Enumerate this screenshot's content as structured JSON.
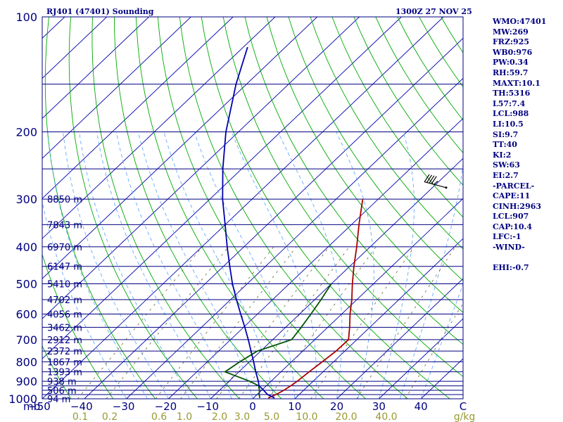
{
  "chart_data": {
    "type": "line",
    "subtype": "skew-t log-p sounding",
    "title_left": "RJ401 (47401) Sounding",
    "title_right": "1300Z 27 NOV 25",
    "x_axis": {
      "unit_label": "C",
      "corner_label": "mb",
      "range": [
        -50,
        50
      ],
      "ticks": [
        -50,
        -40,
        -30,
        -20,
        -10,
        0,
        10,
        20,
        30,
        40
      ]
    },
    "y_axis": {
      "scale": "log",
      "range": [
        1000,
        100
      ],
      "ticks": [
        100,
        200,
        300,
        400,
        500,
        600,
        700,
        800,
        900,
        1000
      ],
      "isobars": [
        100,
        150,
        200,
        250,
        300,
        350,
        400,
        450,
        500,
        550,
        600,
        650,
        700,
        750,
        800,
        850,
        900,
        925,
        950,
        975,
        1000
      ]
    },
    "mixing_ratio_axis": {
      "unit_label": "g/kg",
      "ticks": [
        "0.1",
        "0.2",
        "0.6",
        "1.0",
        "2.0",
        "3.0",
        "5.0",
        "10.0",
        "20.0",
        "40.0"
      ],
      "values": [
        0.1,
        0.2,
        0.6,
        1.0,
        2.0,
        3.0,
        5.0,
        10.0,
        20.0,
        40.0
      ]
    },
    "height_labels": [
      {
        "p": 300,
        "label": "8850 m"
      },
      {
        "p": 350,
        "label": "7843 m"
      },
      {
        "p": 400,
        "label": "6970 m"
      },
      {
        "p": 450,
        "label": "6147 m"
      },
      {
        "p": 500,
        "label": "5410 m"
      },
      {
        "p": 550,
        "label": "4702 m"
      },
      {
        "p": 600,
        "label": "4056 m"
      },
      {
        "p": 650,
        "label": "3462 m"
      },
      {
        "p": 700,
        "label": "2912 m"
      },
      {
        "p": 750,
        "label": "2372 m"
      },
      {
        "p": 800,
        "label": "1867 m"
      },
      {
        "p": 850,
        "label": "1393 m"
      },
      {
        "p": 900,
        "label": "938 m"
      },
      {
        "p": 950,
        "label": "506 m"
      },
      {
        "p": 1000,
        "label": "94 m"
      }
    ],
    "series": [
      {
        "name": "Temperature",
        "color": "#aa0000",
        "points": [
          [
            995,
            3.5
          ],
          [
            975,
            4.5
          ],
          [
            950,
            5.3
          ],
          [
            925,
            5.8
          ],
          [
            900,
            6.2
          ],
          [
            850,
            6.7
          ],
          [
            800,
            7.3
          ],
          [
            750,
            7.9
          ],
          [
            700,
            8.0
          ],
          [
            650,
            5.2
          ],
          [
            600,
            2.0
          ],
          [
            550,
            -1.2
          ],
          [
            500,
            -5.0
          ],
          [
            450,
            -9.0
          ],
          [
            400,
            -13.2
          ],
          [
            350,
            -18.2
          ],
          [
            300,
            -23.7
          ]
        ]
      },
      {
        "name": "Dew Point",
        "color": "#005500",
        "points": [
          [
            995,
            1.5
          ],
          [
            975,
            0.5
          ],
          [
            950,
            -0.5
          ],
          [
            925,
            -1.8
          ],
          [
            900,
            -5.0
          ],
          [
            850,
            -13.3
          ],
          [
            800,
            -12.3
          ],
          [
            750,
            -10.8
          ],
          [
            700,
            -5.5
          ],
          [
            650,
            -6.3
          ],
          [
            600,
            -7.3
          ],
          [
            550,
            -8.5
          ],
          [
            500,
            -10.0
          ]
        ]
      },
      {
        "name": "Parcel",
        "color": "#0000aa",
        "points": [
          [
            995,
            5.0
          ],
          [
            975,
            2.5
          ],
          [
            950,
            0.5
          ],
          [
            925,
            -1.7
          ],
          [
            900,
            -3.0
          ],
          [
            850,
            -6.0
          ],
          [
            800,
            -9.0
          ],
          [
            750,
            -12.3
          ],
          [
            700,
            -15.8
          ],
          [
            650,
            -19.7
          ],
          [
            600,
            -24.0
          ],
          [
            550,
            -28.6
          ],
          [
            500,
            -33.5
          ],
          [
            450,
            -38.5
          ],
          [
            400,
            -44.0
          ],
          [
            350,
            -50.0
          ],
          [
            300,
            -57.0
          ],
          [
            250,
            -64.5
          ],
          [
            200,
            -73.0
          ],
          [
            150,
            -82.5
          ],
          [
            120,
            -89.0
          ]
        ]
      }
    ],
    "wind_barb": {
      "p": 280,
      "direction_deg": 285,
      "speed_kt": 45
    }
  },
  "indices": [
    "WMO:47401",
    "MW:269",
    "FRZ:925",
    "WB0:976",
    "PW:0.34",
    "RH:59.7",
    "MAXT:10.1",
    "TH:5316",
    "L57:7.4",
    "LCL:988",
    "LI:10.5",
    "SI:9.7",
    "TT:40",
    "KI:2",
    "SW:63",
    "EI:2.7",
    "-PARCEL-",
    "CAPE:11",
    "CINH:2963",
    "LCL:907",
    "CAP:10.4",
    "LFC:-1",
    "-WIND-",
    "",
    "EHI:-0.7"
  ],
  "colors": {
    "isobar": "#000080",
    "isotherm": "#0000aa",
    "dry_adiabat": "#00aa00",
    "moist_adiabat": "#66aaff",
    "mixing_ratio": "#666633",
    "axis_text": "#000080",
    "mix_text": "#999933"
  }
}
